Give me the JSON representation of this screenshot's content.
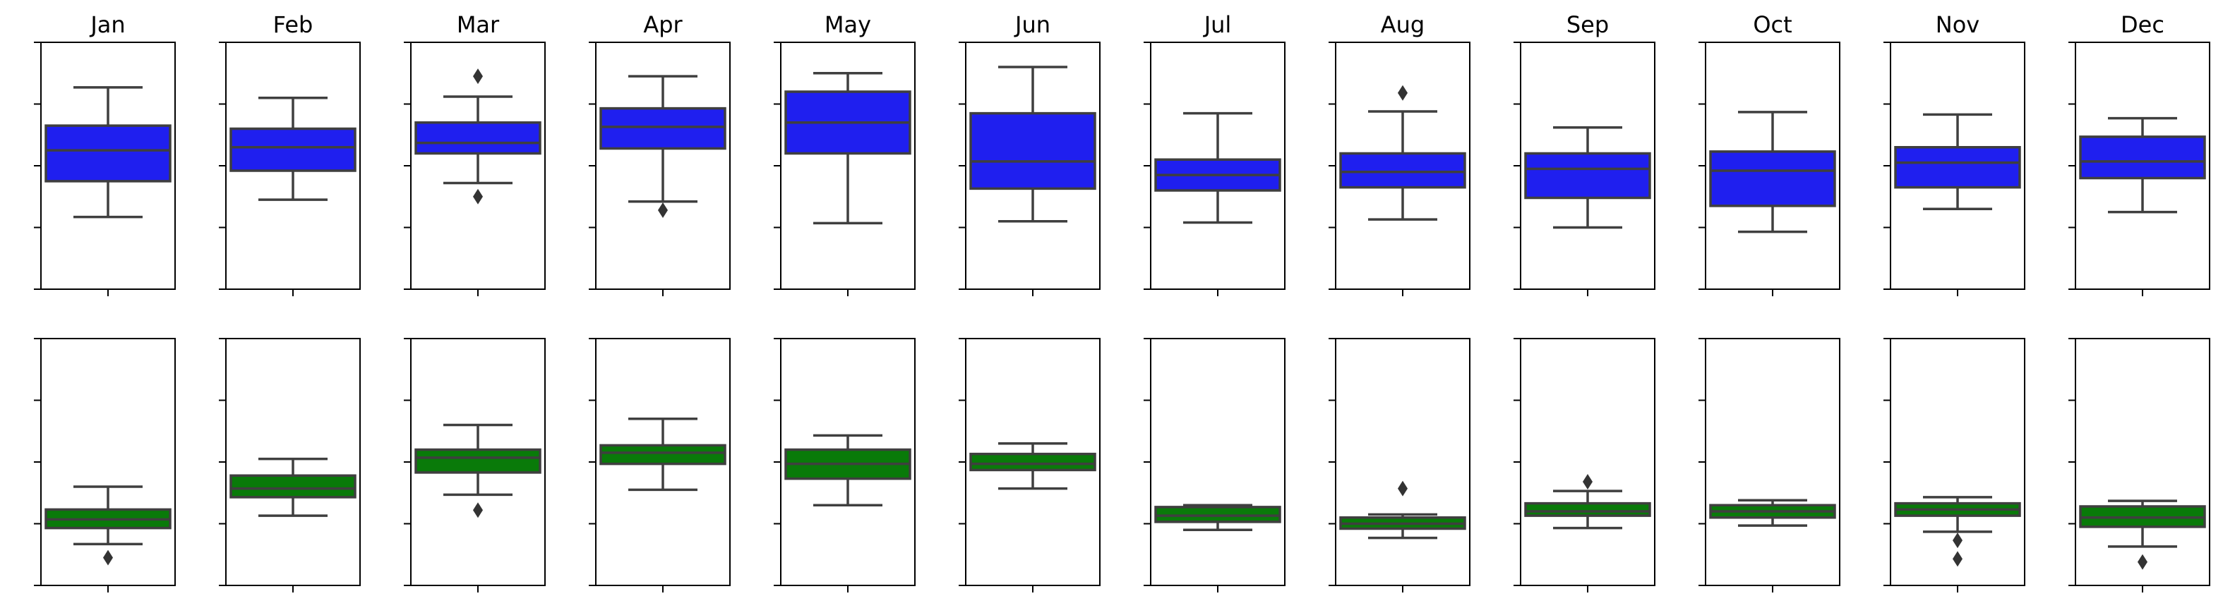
{
  "chart_data": {
    "type": "boxplot",
    "layout": {
      "rows": 2,
      "cols": 12
    },
    "months": [
      "Jan",
      "Feb",
      "Mar",
      "Apr",
      "May",
      "Jun",
      "Jul",
      "Aug",
      "Sep",
      "Oct",
      "Nov",
      "Dec"
    ],
    "ylim": [
      0,
      4
    ],
    "yticks": [
      0,
      1,
      2,
      3,
      4
    ],
    "rows": [
      {
        "color": "#1f1fef",
        "boxes": [
          {
            "whislo": 1.17,
            "q1": 1.75,
            "med": 2.25,
            "q3": 2.65,
            "whishi": 3.27,
            "fliers": []
          },
          {
            "whislo": 1.45,
            "q1": 1.92,
            "med": 2.3,
            "q3": 2.6,
            "whishi": 3.1,
            "fliers": []
          },
          {
            "whislo": 1.72,
            "q1": 2.2,
            "med": 2.37,
            "q3": 2.7,
            "whishi": 3.12,
            "fliers": [
              3.45,
              1.5
            ]
          },
          {
            "whislo": 1.42,
            "q1": 2.28,
            "med": 2.63,
            "q3": 2.93,
            "whishi": 3.45,
            "fliers": [
              1.28
            ]
          },
          {
            "whislo": 1.07,
            "q1": 2.2,
            "med": 2.7,
            "q3": 3.2,
            "whishi": 3.5,
            "fliers": []
          },
          {
            "whislo": 1.1,
            "q1": 1.63,
            "med": 2.07,
            "q3": 2.85,
            "whishi": 3.6,
            "fliers": []
          },
          {
            "whislo": 1.08,
            "q1": 1.6,
            "med": 1.85,
            "q3": 2.1,
            "whishi": 2.85,
            "fliers": []
          },
          {
            "whislo": 1.13,
            "q1": 1.65,
            "med": 1.9,
            "q3": 2.2,
            "whishi": 2.88,
            "fliers": [
              3.18
            ]
          },
          {
            "whislo": 1.0,
            "q1": 1.48,
            "med": 1.95,
            "q3": 2.2,
            "whishi": 2.62,
            "fliers": []
          },
          {
            "whislo": 0.93,
            "q1": 1.35,
            "med": 1.92,
            "q3": 2.23,
            "whishi": 2.87,
            "fliers": []
          },
          {
            "whislo": 1.3,
            "q1": 1.65,
            "med": 2.05,
            "q3": 2.3,
            "whishi": 2.83,
            "fliers": []
          },
          {
            "whislo": 1.25,
            "q1": 1.8,
            "med": 2.07,
            "q3": 2.47,
            "whishi": 2.77,
            "fliers": []
          }
        ]
      },
      {
        "color": "#097a09",
        "boxes": [
          {
            "whislo": 0.67,
            "q1": 0.93,
            "med": 1.07,
            "q3": 1.23,
            "whishi": 1.6,
            "fliers": [
              0.45
            ]
          },
          {
            "whislo": 1.13,
            "q1": 1.43,
            "med": 1.57,
            "q3": 1.78,
            "whishi": 2.05,
            "fliers": []
          },
          {
            "whislo": 1.47,
            "q1": 1.83,
            "med": 2.07,
            "q3": 2.2,
            "whishi": 2.6,
            "fliers": [
              1.22
            ]
          },
          {
            "whislo": 1.55,
            "q1": 1.97,
            "med": 2.15,
            "q3": 2.27,
            "whishi": 2.7,
            "fliers": []
          },
          {
            "whislo": 1.3,
            "q1": 1.73,
            "med": 1.97,
            "q3": 2.2,
            "whishi": 2.43,
            "fliers": []
          },
          {
            "whislo": 1.57,
            "q1": 1.87,
            "med": 1.97,
            "q3": 2.13,
            "whishi": 2.3,
            "fliers": []
          },
          {
            "whislo": 0.9,
            "q1": 1.03,
            "med": 1.13,
            "q3": 1.27,
            "whishi": 1.3,
            "fliers": []
          },
          {
            "whislo": 0.77,
            "q1": 0.92,
            "med": 1.0,
            "q3": 1.1,
            "whishi": 1.15,
            "fliers": [
              1.57
            ]
          },
          {
            "whislo": 0.93,
            "q1": 1.13,
            "med": 1.2,
            "q3": 1.33,
            "whishi": 1.53,
            "fliers": [
              1.68
            ]
          },
          {
            "whislo": 0.97,
            "q1": 1.1,
            "med": 1.2,
            "q3": 1.3,
            "whishi": 1.38,
            "fliers": []
          },
          {
            "whislo": 0.87,
            "q1": 1.13,
            "med": 1.23,
            "q3": 1.33,
            "whishi": 1.43,
            "fliers": [
              0.73,
              0.43
            ]
          },
          {
            "whislo": 0.63,
            "q1": 0.95,
            "med": 1.1,
            "q3": 1.28,
            "whishi": 1.37,
            "fliers": [
              0.38
            ]
          }
        ]
      }
    ]
  }
}
